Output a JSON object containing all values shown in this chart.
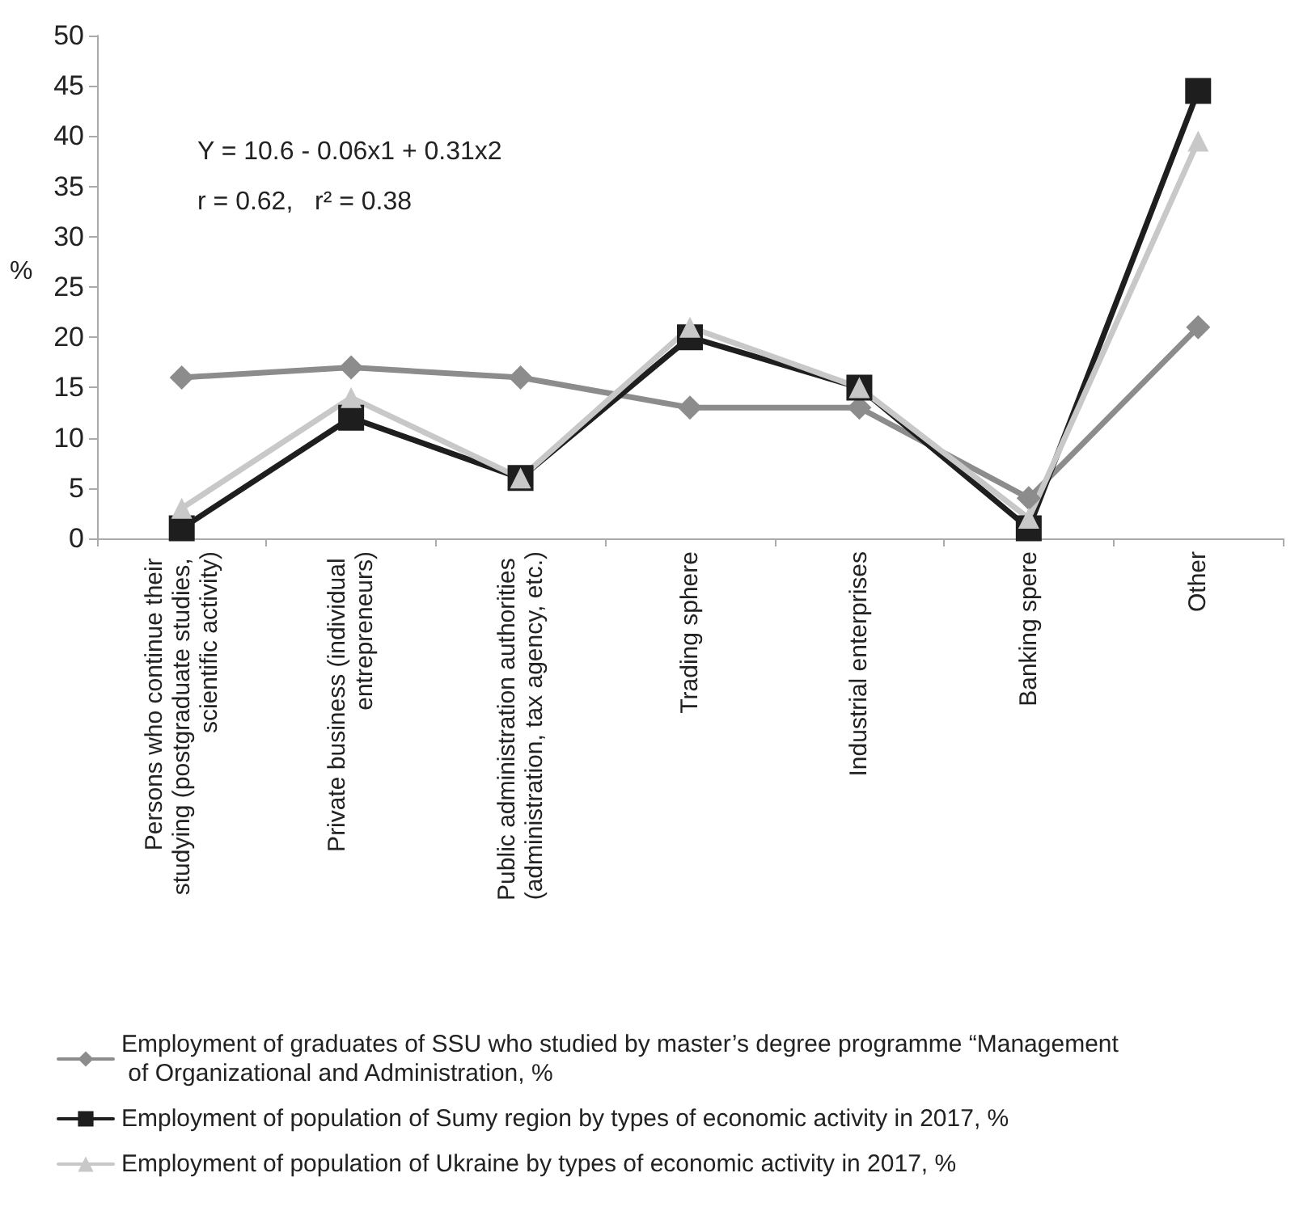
{
  "chart_data": {
    "type": "line",
    "ylabel": "%",
    "categories": [
      "Persons who continue their studying (postgraduate studies, scientific activity)",
      "Private business (individual entrepreneurs)",
      "Public administration authorities (administration, tax agency, etc.)",
      "Trading sphere",
      "Industrial enterprises",
      "Banking spere",
      "Other"
    ],
    "series": [
      {
        "name": "Employment of graduates of SSU who studied by master’s degree programme “Management of Organizational and Administration, %",
        "color": "#8c8c8c",
        "marker": "diamond",
        "values": [
          16,
          17,
          16,
          13,
          13,
          4,
          21
        ]
      },
      {
        "name": "Employment of population of Sumy region by types of economic activity in 2017, %",
        "color": "#1e1e1e",
        "marker": "square",
        "values": [
          1,
          12,
          6,
          20,
          15,
          1,
          44.5
        ]
      },
      {
        "name": "Employment of population of Ukraine by types of economic activity in 2017, %",
        "color": "#c8c8c8",
        "marker": "triangle",
        "values": [
          3,
          14,
          6,
          21,
          15,
          2,
          39.5
        ]
      }
    ],
    "ylim": [
      0,
      50
    ],
    "yticks": [
      0,
      5,
      10,
      15,
      20,
      25,
      30,
      35,
      40,
      45,
      50
    ],
    "annotations": [
      "Y = 10.6 - 0.06x1 + 0.31x2",
      "r = 0.62,   r² = 0.38"
    ],
    "grid": false,
    "legend": "bottom",
    "line_style": "solid"
  }
}
